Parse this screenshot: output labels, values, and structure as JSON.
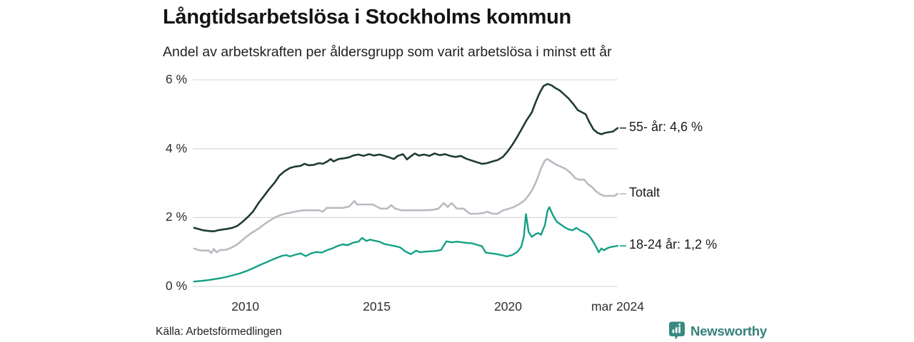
{
  "header": {
    "title": "Långtidsarbetslösa i Stockholms kommun",
    "subtitle": "Andel av arbetskraften per åldersgrupp som varit arbetslösa i minst ett år"
  },
  "footer": {
    "source": "Källa: Arbetsförmedlingen",
    "brand": "Newsworthy",
    "brand_icon": "newsworthy-badge-bar-chart-icon",
    "brand_color": "#35807a"
  },
  "colors": {
    "gridline": "#dcdcdc",
    "axis_text": "#2e2e2e",
    "series_55": "#1e3b32",
    "series_total": "#bcb9c2",
    "series_1824": "#12a086"
  },
  "chart_data": {
    "type": "line",
    "title": "Långtidsarbetslösa i Stockholms kommun",
    "subtitle": "Andel av arbetskraften per åldersgrupp som varit arbetslösa i minst ett år",
    "xlabel": "",
    "ylabel": "",
    "grid": true,
    "legend_position": "right-end-labels",
    "x_axis": {
      "range": [
        2008.0,
        2024.17
      ],
      "ticks": [
        {
          "x": 2010,
          "label": "2010"
        },
        {
          "x": 2015,
          "label": "2015"
        },
        {
          "x": 2020,
          "label": "2020"
        },
        {
          "x": 2024.17,
          "label": "mar 2024"
        }
      ]
    },
    "y_axis": {
      "range": [
        0,
        6
      ],
      "ticks": [
        {
          "y": 0,
          "label": "0 %"
        },
        {
          "y": 2,
          "label": "2 %"
        },
        {
          "y": 4,
          "label": "4 %"
        },
        {
          "y": 6,
          "label": "6 %"
        }
      ]
    },
    "series": [
      {
        "id": "55-ar",
        "name": "55- år",
        "end_label": "55- år: 4,6 %",
        "end_value_pct": 4.6,
        "color": "#1e3b32",
        "width": 2.6,
        "points": [
          [
            2008.05,
            1.7
          ],
          [
            2008.2,
            1.67
          ],
          [
            2008.4,
            1.63
          ],
          [
            2008.6,
            1.61
          ],
          [
            2008.8,
            1.6
          ],
          [
            2008.95,
            1.63
          ],
          [
            2009.1,
            1.65
          ],
          [
            2009.3,
            1.67
          ],
          [
            2009.5,
            1.7
          ],
          [
            2009.7,
            1.76
          ],
          [
            2009.9,
            1.88
          ],
          [
            2010.1,
            2.02
          ],
          [
            2010.3,
            2.18
          ],
          [
            2010.5,
            2.42
          ],
          [
            2010.7,
            2.62
          ],
          [
            2010.9,
            2.82
          ],
          [
            2011.1,
            3.0
          ],
          [
            2011.3,
            3.22
          ],
          [
            2011.5,
            3.35
          ],
          [
            2011.7,
            3.44
          ],
          [
            2011.9,
            3.48
          ],
          [
            2012.1,
            3.5
          ],
          [
            2012.25,
            3.56
          ],
          [
            2012.4,
            3.52
          ],
          [
            2012.6,
            3.53
          ],
          [
            2012.8,
            3.58
          ],
          [
            2012.95,
            3.56
          ],
          [
            2013.1,
            3.62
          ],
          [
            2013.25,
            3.7
          ],
          [
            2013.35,
            3.63
          ],
          [
            2013.55,
            3.7
          ],
          [
            2013.75,
            3.72
          ],
          [
            2013.95,
            3.75
          ],
          [
            2014.1,
            3.8
          ],
          [
            2014.3,
            3.83
          ],
          [
            2014.5,
            3.79
          ],
          [
            2014.7,
            3.84
          ],
          [
            2014.9,
            3.8
          ],
          [
            2015.1,
            3.83
          ],
          [
            2015.3,
            3.79
          ],
          [
            2015.5,
            3.74
          ],
          [
            2015.65,
            3.7
          ],
          [
            2015.8,
            3.79
          ],
          [
            2016.0,
            3.84
          ],
          [
            2016.15,
            3.69
          ],
          [
            2016.3,
            3.78
          ],
          [
            2016.45,
            3.86
          ],
          [
            2016.6,
            3.8
          ],
          [
            2016.8,
            3.83
          ],
          [
            2017.0,
            3.79
          ],
          [
            2017.2,
            3.86
          ],
          [
            2017.4,
            3.81
          ],
          [
            2017.6,
            3.84
          ],
          [
            2017.8,
            3.79
          ],
          [
            2018.0,
            3.76
          ],
          [
            2018.2,
            3.79
          ],
          [
            2018.4,
            3.71
          ],
          [
            2018.6,
            3.66
          ],
          [
            2018.8,
            3.61
          ],
          [
            2019.0,
            3.56
          ],
          [
            2019.2,
            3.58
          ],
          [
            2019.4,
            3.63
          ],
          [
            2019.6,
            3.67
          ],
          [
            2019.8,
            3.76
          ],
          [
            2020.0,
            3.94
          ],
          [
            2020.15,
            4.1
          ],
          [
            2020.3,
            4.28
          ],
          [
            2020.5,
            4.55
          ],
          [
            2020.7,
            4.82
          ],
          [
            2020.9,
            5.05
          ],
          [
            2021.05,
            5.35
          ],
          [
            2021.2,
            5.62
          ],
          [
            2021.35,
            5.82
          ],
          [
            2021.5,
            5.88
          ],
          [
            2021.65,
            5.84
          ],
          [
            2021.8,
            5.76
          ],
          [
            2021.95,
            5.7
          ],
          [
            2022.1,
            5.6
          ],
          [
            2022.3,
            5.46
          ],
          [
            2022.5,
            5.28
          ],
          [
            2022.65,
            5.12
          ],
          [
            2022.8,
            5.06
          ],
          [
            2022.95,
            5.0
          ],
          [
            2023.1,
            4.76
          ],
          [
            2023.25,
            4.56
          ],
          [
            2023.4,
            4.46
          ],
          [
            2023.55,
            4.42
          ],
          [
            2023.7,
            4.46
          ],
          [
            2023.85,
            4.48
          ],
          [
            2024.0,
            4.5
          ],
          [
            2024.17,
            4.6
          ]
        ]
      },
      {
        "id": "totalt",
        "name": "Totalt",
        "end_label": "Totalt",
        "end_value_pct": 2.7,
        "color": "#bcb9c2",
        "width": 2.6,
        "points": [
          [
            2008.05,
            1.1
          ],
          [
            2008.25,
            1.05
          ],
          [
            2008.45,
            1.04
          ],
          [
            2008.6,
            1.04
          ],
          [
            2008.7,
            0.97
          ],
          [
            2008.8,
            1.09
          ],
          [
            2008.9,
            0.99
          ],
          [
            2009.05,
            1.06
          ],
          [
            2009.25,
            1.06
          ],
          [
            2009.45,
            1.12
          ],
          [
            2009.65,
            1.2
          ],
          [
            2009.85,
            1.32
          ],
          [
            2010.05,
            1.45
          ],
          [
            2010.25,
            1.56
          ],
          [
            2010.5,
            1.68
          ],
          [
            2010.75,
            1.82
          ],
          [
            2011.0,
            1.95
          ],
          [
            2011.2,
            2.03
          ],
          [
            2011.45,
            2.1
          ],
          [
            2011.7,
            2.14
          ],
          [
            2011.95,
            2.18
          ],
          [
            2012.2,
            2.21
          ],
          [
            2012.5,
            2.21
          ],
          [
            2012.8,
            2.21
          ],
          [
            2012.95,
            2.17
          ],
          [
            2013.1,
            2.28
          ],
          [
            2013.4,
            2.28
          ],
          [
            2013.7,
            2.28
          ],
          [
            2013.95,
            2.32
          ],
          [
            2014.05,
            2.4
          ],
          [
            2014.15,
            2.48
          ],
          [
            2014.25,
            2.38
          ],
          [
            2014.55,
            2.38
          ],
          [
            2014.85,
            2.38
          ],
          [
            2015.0,
            2.32
          ],
          [
            2015.15,
            2.26
          ],
          [
            2015.4,
            2.26
          ],
          [
            2015.55,
            2.36
          ],
          [
            2015.7,
            2.26
          ],
          [
            2015.95,
            2.21
          ],
          [
            2016.2,
            2.21
          ],
          [
            2016.5,
            2.21
          ],
          [
            2016.8,
            2.21
          ],
          [
            2017.1,
            2.22
          ],
          [
            2017.35,
            2.26
          ],
          [
            2017.55,
            2.42
          ],
          [
            2017.7,
            2.31
          ],
          [
            2017.85,
            2.42
          ],
          [
            2018.05,
            2.26
          ],
          [
            2018.3,
            2.26
          ],
          [
            2018.55,
            2.11
          ],
          [
            2018.8,
            2.11
          ],
          [
            2019.05,
            2.13
          ],
          [
            2019.2,
            2.17
          ],
          [
            2019.4,
            2.11
          ],
          [
            2019.6,
            2.11
          ],
          [
            2019.8,
            2.21
          ],
          [
            2020.0,
            2.25
          ],
          [
            2020.2,
            2.3
          ],
          [
            2020.4,
            2.38
          ],
          [
            2020.6,
            2.48
          ],
          [
            2020.8,
            2.66
          ],
          [
            2020.95,
            2.85
          ],
          [
            2021.1,
            3.1
          ],
          [
            2021.25,
            3.42
          ],
          [
            2021.4,
            3.66
          ],
          [
            2021.5,
            3.7
          ],
          [
            2021.65,
            3.62
          ],
          [
            2021.8,
            3.55
          ],
          [
            2022.0,
            3.48
          ],
          [
            2022.2,
            3.41
          ],
          [
            2022.4,
            3.28
          ],
          [
            2022.55,
            3.15
          ],
          [
            2022.7,
            3.1
          ],
          [
            2022.9,
            3.1
          ],
          [
            2023.05,
            2.96
          ],
          [
            2023.2,
            2.88
          ],
          [
            2023.35,
            2.76
          ],
          [
            2023.5,
            2.68
          ],
          [
            2023.65,
            2.63
          ],
          [
            2023.85,
            2.63
          ],
          [
            2024.05,
            2.63
          ],
          [
            2024.17,
            2.69
          ]
        ]
      },
      {
        "id": "18-24-ar",
        "name": "18-24 år",
        "end_label": "18-24 år: 1,2 %",
        "end_value_pct": 1.2,
        "color": "#12a086",
        "width": 2.4,
        "points": [
          [
            2008.05,
            0.14
          ],
          [
            2008.3,
            0.16
          ],
          [
            2008.55,
            0.18
          ],
          [
            2008.8,
            0.21
          ],
          [
            2009.05,
            0.24
          ],
          [
            2009.3,
            0.28
          ],
          [
            2009.55,
            0.33
          ],
          [
            2009.8,
            0.38
          ],
          [
            2010.05,
            0.45
          ],
          [
            2010.3,
            0.53
          ],
          [
            2010.55,
            0.62
          ],
          [
            2010.8,
            0.7
          ],
          [
            2011.0,
            0.77
          ],
          [
            2011.2,
            0.83
          ],
          [
            2011.4,
            0.89
          ],
          [
            2011.55,
            0.91
          ],
          [
            2011.7,
            0.87
          ],
          [
            2011.9,
            0.92
          ],
          [
            2012.1,
            0.96
          ],
          [
            2012.3,
            0.88
          ],
          [
            2012.5,
            0.96
          ],
          [
            2012.7,
            1.0
          ],
          [
            2012.9,
            0.98
          ],
          [
            2013.1,
            1.05
          ],
          [
            2013.3,
            1.1
          ],
          [
            2013.5,
            1.17
          ],
          [
            2013.7,
            1.22
          ],
          [
            2013.9,
            1.2
          ],
          [
            2014.1,
            1.27
          ],
          [
            2014.3,
            1.3
          ],
          [
            2014.45,
            1.41
          ],
          [
            2014.6,
            1.32
          ],
          [
            2014.75,
            1.36
          ],
          [
            2014.9,
            1.33
          ],
          [
            2015.1,
            1.3
          ],
          [
            2015.3,
            1.23
          ],
          [
            2015.5,
            1.2
          ],
          [
            2015.7,
            1.17
          ],
          [
            2015.9,
            1.13
          ],
          [
            2016.1,
            1.01
          ],
          [
            2016.3,
            0.94
          ],
          [
            2016.5,
            1.04
          ],
          [
            2016.65,
            0.99
          ],
          [
            2016.85,
            1.01
          ],
          [
            2017.05,
            1.02
          ],
          [
            2017.25,
            1.03
          ],
          [
            2017.45,
            1.06
          ],
          [
            2017.65,
            1.31
          ],
          [
            2017.85,
            1.28
          ],
          [
            2018.05,
            1.3
          ],
          [
            2018.25,
            1.28
          ],
          [
            2018.45,
            1.26
          ],
          [
            2018.65,
            1.25
          ],
          [
            2018.85,
            1.2
          ],
          [
            2019.0,
            1.17
          ],
          [
            2019.15,
            0.98
          ],
          [
            2019.35,
            0.96
          ],
          [
            2019.55,
            0.94
          ],
          [
            2019.75,
            0.91
          ],
          [
            2019.95,
            0.87
          ],
          [
            2020.15,
            0.91
          ],
          [
            2020.35,
            1.0
          ],
          [
            2020.5,
            1.15
          ],
          [
            2020.6,
            1.45
          ],
          [
            2020.68,
            2.1
          ],
          [
            2020.78,
            1.58
          ],
          [
            2020.9,
            1.44
          ],
          [
            2021.05,
            1.52
          ],
          [
            2021.15,
            1.55
          ],
          [
            2021.25,
            1.5
          ],
          [
            2021.4,
            1.78
          ],
          [
            2021.5,
            2.2
          ],
          [
            2021.57,
            2.3
          ],
          [
            2021.7,
            2.08
          ],
          [
            2021.85,
            1.88
          ],
          [
            2022.0,
            1.8
          ],
          [
            2022.15,
            1.72
          ],
          [
            2022.3,
            1.66
          ],
          [
            2022.45,
            1.63
          ],
          [
            2022.6,
            1.7
          ],
          [
            2022.75,
            1.62
          ],
          [
            2022.9,
            1.57
          ],
          [
            2023.05,
            1.5
          ],
          [
            2023.2,
            1.35
          ],
          [
            2023.35,
            1.15
          ],
          [
            2023.45,
            0.99
          ],
          [
            2023.55,
            1.1
          ],
          [
            2023.65,
            1.05
          ],
          [
            2023.8,
            1.12
          ],
          [
            2023.95,
            1.15
          ],
          [
            2024.17,
            1.18
          ]
        ]
      }
    ]
  }
}
